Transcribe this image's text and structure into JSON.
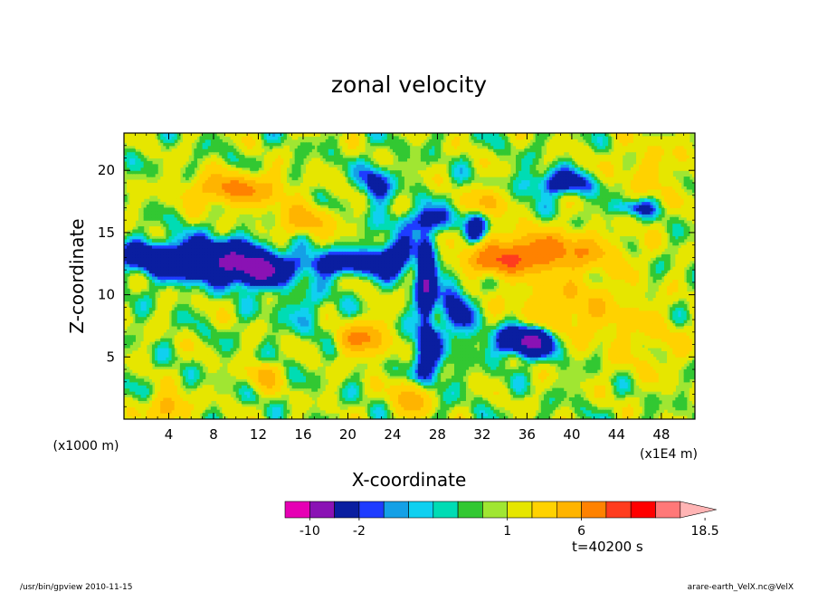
{
  "chart_data": {
    "type": "heatmap",
    "title": "zonal velocity",
    "xlabel": "X-coordinate",
    "ylabel": "Z-coordinate",
    "x_units": "(x1000 m)",
    "x_scale_note": "(x1E4 m)",
    "xlim": [
      0,
      51
    ],
    "ylim": [
      0,
      23
    ],
    "x_ticks": [
      4,
      8,
      12,
      16,
      20,
      24,
      28,
      32,
      36,
      40,
      44,
      48
    ],
    "y_ticks": [
      5,
      10,
      15,
      20
    ],
    "colorbar": {
      "levels": [
        -14,
        -10,
        -6,
        -2,
        -1.5,
        -1,
        -0.5,
        0,
        0.5,
        1,
        2,
        4,
        6,
        8.5,
        11,
        13.5,
        16,
        18.5
      ],
      "colors": [
        "#e600b4",
        "#8a12b4",
        "#0a1ea0",
        "#1e3cff",
        "#14a0e6",
        "#10d0f0",
        "#00dcb4",
        "#32c832",
        "#a0e632",
        "#e6e600",
        "#ffd200",
        "#ffb400",
        "#ff8200",
        "#ff3c1e",
        "#ff0000",
        "#ff7878",
        "#ffb4b4"
      ],
      "tick_labels": [
        "-10",
        "-2",
        "1",
        "6",
        "18.5"
      ],
      "tick_values": [
        -10,
        -2,
        1,
        6,
        18.5
      ]
    },
    "grid": false,
    "annotation_time": "t=40200 s"
  },
  "footer": {
    "left": "/usr/bin/gpview   2010-11-15",
    "right": "arare-earth_VelX.nc@VelX"
  }
}
